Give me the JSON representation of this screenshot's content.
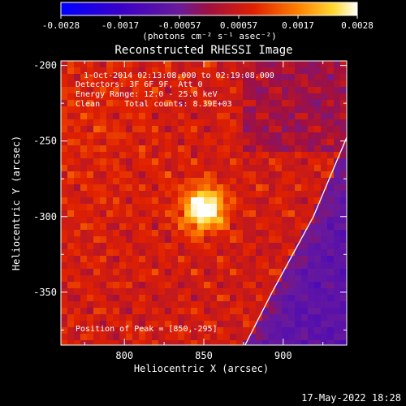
{
  "colorbar": {
    "ticks": [
      "-0.0028",
      "-0.0017",
      "-0.00057",
      "0.00057",
      "0.0017",
      "0.0028"
    ],
    "label": "(photons cm⁻² s⁻¹ asec⁻²)",
    "range": [
      -0.0028,
      0.0028
    ]
  },
  "title": "Reconstructed RHESSI Image",
  "annotations": {
    "line1": "1-Oct-2014 02:13:08.000 to 02:19:08.000",
    "line2": "Detectors: 3F 6F 9F, Att 0",
    "line3": "Energy Range: 12.0 - 25.0 keV",
    "line4": "Clean     Total counts: 8.39E+03",
    "peak": "Position of Peak = [850,-295]"
  },
  "footer": {
    "timestamp": "17-May-2022 18:28"
  },
  "chart_data": {
    "type": "heatmap",
    "title": "Reconstructed RHESSI Image",
    "xlabel": "Heliocentric X (arcsec)",
    "ylabel": "Heliocentric Y (arcsec)",
    "xlim": [
      760,
      940
    ],
    "ylim": [
      -385,
      -197
    ],
    "xticks": [
      800,
      850,
      900
    ],
    "yticks": [
      -200,
      -250,
      -300,
      -350
    ],
    "peak": [
      850,
      -295
    ],
    "colormap": "hot-blue",
    "limb_curve": [
      [
        876,
        -385
      ],
      [
        893,
        -350
      ],
      [
        906,
        -325
      ],
      [
        919,
        -300
      ],
      [
        931,
        -270
      ],
      [
        941,
        -245
      ],
      [
        950,
        -220
      ],
      [
        958,
        -197
      ]
    ]
  }
}
